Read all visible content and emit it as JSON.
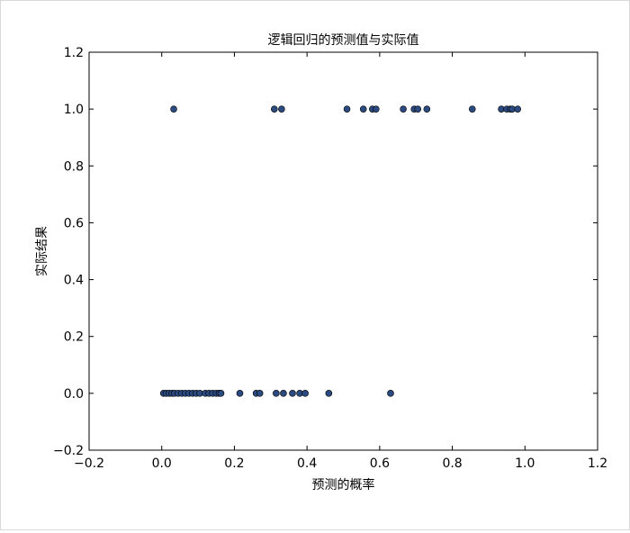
{
  "chart_data": {
    "type": "scatter",
    "title": "逻辑回归的预测值与实际值",
    "xlabel": "预测的概率",
    "ylabel": "实际结果",
    "xlim": [
      -0.2,
      1.2
    ],
    "ylim": [
      -0.2,
      1.2
    ],
    "xticks": [
      -0.2,
      0.0,
      0.2,
      0.4,
      0.6,
      0.8,
      1.0,
      1.2
    ],
    "yticks": [
      -0.2,
      0.0,
      0.2,
      0.4,
      0.6,
      0.8,
      1.0,
      1.2
    ],
    "xtick_labels": [
      "−0.2",
      "0.0",
      "0.2",
      "0.4",
      "0.6",
      "0.8",
      "1.0",
      "1.2"
    ],
    "ytick_labels": [
      "−0.2",
      "0.0",
      "0.2",
      "0.4",
      "0.6",
      "0.8",
      "1.0",
      "1.2"
    ],
    "grid": false,
    "marker_color": "#2b4a80",
    "marker_edge": "#000000",
    "series": [
      {
        "x": [
          0.005,
          0.012,
          0.02,
          0.028,
          0.035,
          0.045,
          0.055,
          0.065,
          0.075,
          0.085,
          0.095,
          0.105,
          0.12,
          0.13,
          0.14,
          0.15,
          0.158,
          0.163,
          0.215,
          0.26,
          0.27,
          0.315,
          0.335,
          0.36,
          0.38,
          0.395,
          0.46,
          0.63,
          0.033,
          0.31,
          0.33,
          0.51,
          0.555,
          0.58,
          0.59,
          0.665,
          0.695,
          0.705,
          0.73,
          0.855,
          0.935,
          0.95,
          0.96,
          0.965,
          0.98
        ],
        "y": [
          0,
          0,
          0,
          0,
          0,
          0,
          0,
          0,
          0,
          0,
          0,
          0,
          0,
          0,
          0,
          0,
          0,
          0,
          0,
          0,
          0,
          0,
          0,
          0,
          0,
          0,
          0,
          0,
          1,
          1,
          1,
          1,
          1,
          1,
          1,
          1,
          1,
          1,
          1,
          1,
          1,
          1,
          1,
          1,
          1
        ]
      }
    ]
  }
}
